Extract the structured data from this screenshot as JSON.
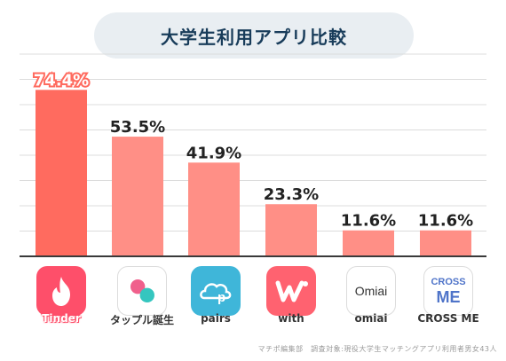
{
  "title": "大学生利用アプリ比較",
  "credit": "マチポ編集部　調査対象:現役大学生マッチングアプリ利用者男女43人",
  "colors": {
    "bar_highlight": "#ff6b5f",
    "bar": "#ff8f86",
    "title_bg": "#e9eef2",
    "title_text": "#183c5a",
    "highlight_label": "#ffffff",
    "highlight_label_stroke": "#ff6b5f"
  },
  "apps": [
    {
      "name": "Tinder",
      "icon": "tinder-flame-icon"
    },
    {
      "name": "タップル誕生",
      "icon": "tapple-circles-icon"
    },
    {
      "name": "pairs",
      "icon": "pairs-cloud-icon"
    },
    {
      "name": "with",
      "icon": "with-w-icon"
    },
    {
      "name": "omiai",
      "icon": "omiai-logo-icon",
      "icon_text": "Omiai"
    },
    {
      "name": "CROSS ME",
      "icon": "crossme-logo-icon",
      "icon_text_top": "CROSS",
      "icon_text_bottom": "ME"
    }
  ],
  "chart_data": {
    "type": "bar",
    "title": "大学生利用アプリ比較",
    "categories": [
      "Tinder",
      "タップル誕生",
      "pairs",
      "with",
      "omiai",
      "CROSS ME"
    ],
    "values": [
      74.4,
      53.5,
      41.9,
      23.3,
      11.6,
      11.6
    ],
    "value_labels": [
      "74.4%",
      "53.5%",
      "41.9%",
      "23.3%",
      "11.6%",
      "11.6%"
    ],
    "ylim": [
      0,
      90
    ],
    "grid": true,
    "highlight_index": 0
  }
}
